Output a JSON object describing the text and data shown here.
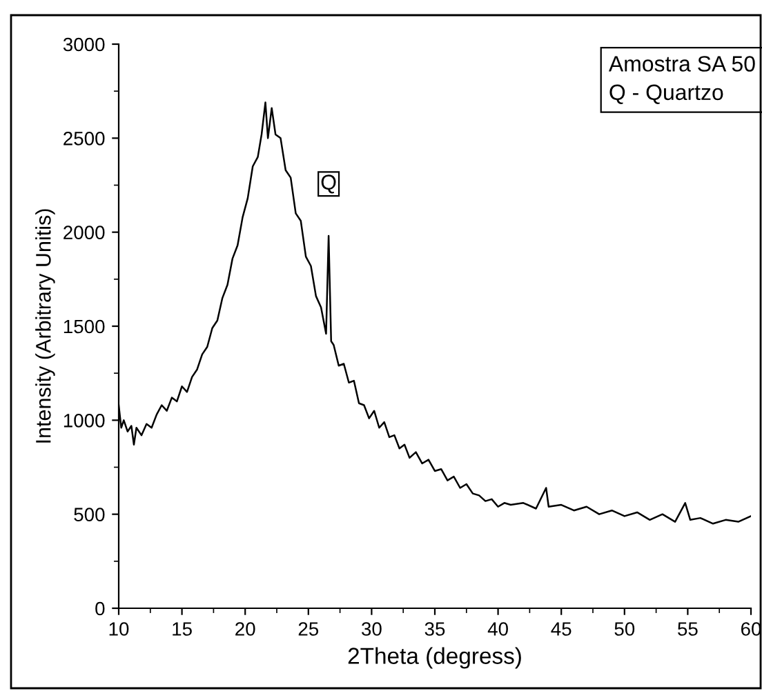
{
  "chart_data": {
    "type": "line",
    "xlabel": "2Theta (degress)",
    "ylabel": "Intensity (Arbitrary Unitis)",
    "annotations": [
      "Amostra SA 50\nQ - Quartzo",
      {
        "text": "Q",
        "x": 26.6,
        "y": 1980
      }
    ],
    "series": [
      {
        "color": "#000000",
        "x": [
          10,
          10.2,
          10.4,
          10.7,
          11,
          11.2,
          11.4,
          11.8,
          12.2,
          12.6,
          13,
          13.4,
          13.8,
          14.2,
          14.6,
          15,
          15.4,
          15.8,
          16.2,
          16.6,
          17,
          17.4,
          17.8,
          18.2,
          18.6,
          19,
          19.4,
          19.8,
          20.2,
          20.6,
          21,
          21.3,
          21.6,
          21.8,
          22.1,
          22.4,
          22.8,
          23.2,
          23.6,
          24,
          24.4,
          24.8,
          25.2,
          25.6,
          26,
          26.4,
          26.6,
          26.8,
          27,
          27.4,
          27.8,
          28.2,
          28.6,
          29,
          29.4,
          29.8,
          30.2,
          30.6,
          31,
          31.4,
          31.8,
          32.2,
          32.6,
          33,
          33.5,
          34,
          34.5,
          35,
          35.5,
          36,
          36.5,
          37,
          37.5,
          38,
          38.5,
          39,
          39.5,
          40,
          40.5,
          41,
          42,
          43,
          43.8,
          44,
          45,
          46,
          47,
          48,
          49,
          50,
          51,
          52,
          53,
          54,
          54.8,
          55.2,
          56,
          57,
          58,
          59,
          60
        ],
        "values": [
          1080,
          960,
          1000,
          940,
          970,
          870,
          960,
          920,
          980,
          960,
          1030,
          1080,
          1050,
          1120,
          1100,
          1180,
          1150,
          1230,
          1270,
          1350,
          1390,
          1490,
          1530,
          1650,
          1720,
          1860,
          1930,
          2080,
          2180,
          2350,
          2400,
          2520,
          2690,
          2500,
          2660,
          2520,
          2500,
          2330,
          2290,
          2100,
          2060,
          1870,
          1820,
          1660,
          1600,
          1460,
          1980,
          1420,
          1400,
          1290,
          1300,
          1200,
          1210,
          1090,
          1080,
          1010,
          1050,
          960,
          990,
          910,
          920,
          850,
          870,
          800,
          830,
          770,
          790,
          730,
          740,
          680,
          700,
          640,
          660,
          610,
          600,
          570,
          580,
          540,
          560,
          550,
          560,
          530,
          640,
          540,
          550,
          520,
          540,
          500,
          520,
          490,
          510,
          470,
          500,
          460,
          560,
          470,
          480,
          450,
          470,
          460,
          490
        ]
      }
    ],
    "xlim": [
      10,
      60
    ],
    "xticks": [
      10,
      15,
      20,
      25,
      30,
      35,
      40,
      45,
      50,
      55,
      60
    ],
    "ylim": [
      0,
      3000
    ],
    "yticks": [
      0,
      500,
      1000,
      1500,
      2000,
      2500,
      3000
    ],
    "grid": false,
    "legend": false,
    "marker": "none",
    "line_style": "solid"
  }
}
